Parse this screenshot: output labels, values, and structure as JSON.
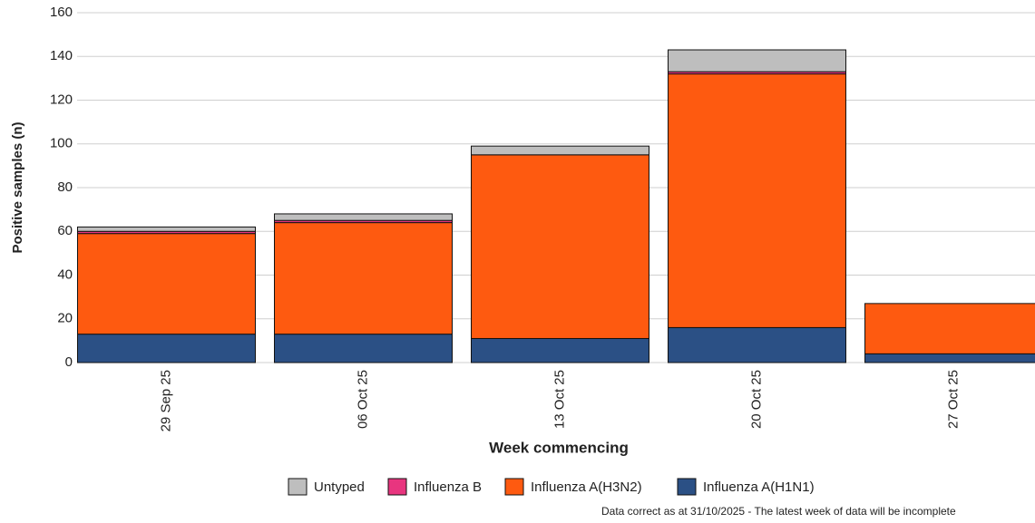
{
  "chart_data": {
    "type": "stacked_bar",
    "x_label": "Week commencing",
    "y_label": "Positive samples (n)",
    "footnote": "Data correct as at 31/10/2025 - The latest week of data will be incomplete",
    "categories": [
      "29 Sep 25",
      "06 Oct 25",
      "13 Oct 25",
      "20 Oct 25",
      "27 Oct 25"
    ],
    "series": [
      {
        "name": "Influenza A(H1N1)",
        "color": "#2b5085",
        "values": [
          13,
          13,
          11,
          16,
          4
        ]
      },
      {
        "name": "Influenza A(H3N2)",
        "color": "#fe5a10",
        "values": [
          46,
          51,
          84,
          116,
          23
        ]
      },
      {
        "name": "Influenza B",
        "color": "#e8357f",
        "values": [
          1,
          1,
          0,
          1,
          0
        ]
      },
      {
        "name": "Untyped",
        "color": "#bebebe",
        "values": [
          2,
          3,
          4,
          10,
          0
        ]
      }
    ],
    "ylim": [
      0,
      160
    ],
    "yticks": [
      0,
      20,
      40,
      60,
      80,
      100,
      120,
      140,
      160
    ],
    "grid": true
  }
}
